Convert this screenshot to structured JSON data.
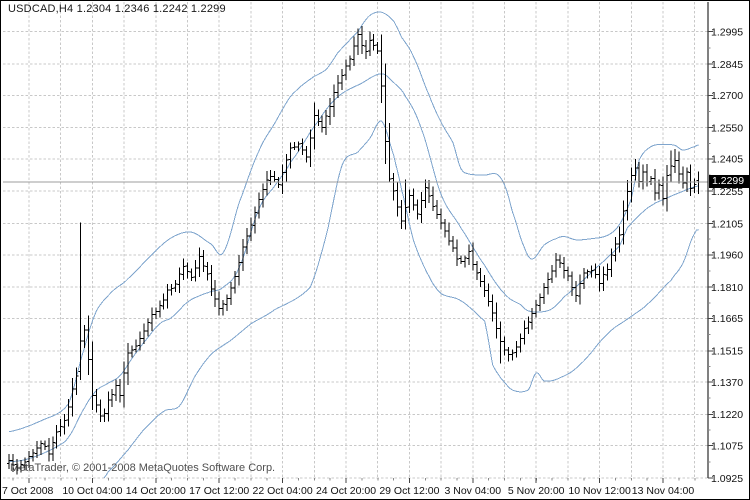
{
  "window": {
    "title": "USDCAD,H4 1.2304 1.2346 1.2242 1.2299",
    "watermark": "MetaTrader, © 2001-2008 MetaQuotes Software Corp."
  },
  "colors": {
    "background": "#ffffff",
    "border": "#000000",
    "grid": "#c8c8c8",
    "bar": "#000000",
    "band": "#7fa5cd",
    "price_line": "#9c9c9c",
    "badge_bg": "#000000",
    "badge_text": "#ffffff",
    "axis_text": "#111111",
    "title_text": "#1a1a1a",
    "watermark_text": "#4f4f4f"
  },
  "chart_data": {
    "type": "ohlc-bar",
    "title": "USDCAD,H4 1.2304 1.2346 1.2242 1.2299",
    "symbol": "USDCAD",
    "timeframe": "H4",
    "overlay_indicator": "Bollinger Bands",
    "current_bar": {
      "open": 1.2304,
      "high": 1.2346,
      "low": 1.2242,
      "close": 1.2299
    },
    "current_price": 1.2299,
    "current_price_label": "1.2299",
    "grid": true,
    "legend_position": "none",
    "x_axis": {
      "labels": [
        "7 Oct 2008",
        "10 Oct 04:00",
        "14 Oct 20:00",
        "17 Oct 12:00",
        "22 Oct 04:00",
        "24 Oct 20:00",
        "29 Oct 12:00",
        "3 Nov 04:00",
        "5 Nov 20:00",
        "10 Nov 12:00",
        "13 Nov 04:00"
      ],
      "bars_per_label": 16,
      "gridline_every_bars": 8
    },
    "y_axis": {
      "labels": [
        "1.2995",
        "1.2845",
        "1.2700",
        "1.2550",
        "1.2405",
        "1.2255",
        "1.2105",
        "1.1960",
        "1.1810",
        "1.1665",
        "1.1515",
        "1.1370",
        "1.1220",
        "1.1075",
        "1.0925"
      ],
      "min": 1.0925,
      "max": 1.2995
    },
    "series": {
      "bar_count": 175,
      "close_keyframes": [
        [
          0,
          1.1
        ],
        [
          2,
          1.0975
        ],
        [
          4,
          1.1005
        ],
        [
          6,
          1.104
        ],
        [
          8,
          1.1085
        ],
        [
          10,
          1.104
        ],
        [
          12,
          1.114
        ],
        [
          14,
          1.12
        ],
        [
          15,
          1.126
        ],
        [
          17,
          1.14
        ],
        [
          18,
          1.156
        ],
        [
          19,
          1.162
        ],
        [
          20,
          1.148
        ],
        [
          21,
          1.13
        ],
        [
          22,
          1.126
        ],
        [
          23,
          1.121
        ],
        [
          24,
          1.123
        ],
        [
          25,
          1.128
        ],
        [
          27,
          1.135
        ],
        [
          28,
          1.131
        ],
        [
          30,
          1.15
        ],
        [
          32,
          1.154
        ],
        [
          34,
          1.16
        ],
        [
          36,
          1.168
        ],
        [
          38,
          1.172
        ],
        [
          40,
          1.179
        ],
        [
          42,
          1.183
        ],
        [
          44,
          1.19
        ],
        [
          46,
          1.186
        ],
        [
          48,
          1.195
        ],
        [
          50,
          1.187
        ],
        [
          51,
          1.18
        ],
        [
          53,
          1.172
        ],
        [
          55,
          1.176
        ],
        [
          56,
          1.18
        ],
        [
          58,
          1.192
        ],
        [
          59,
          1.2
        ],
        [
          61,
          1.21
        ],
        [
          63,
          1.222
        ],
        [
          65,
          1.23
        ],
        [
          66,
          1.233
        ],
        [
          68,
          1.228
        ],
        [
          70,
          1.24
        ],
        [
          71,
          1.245
        ],
        [
          73,
          1.248
        ],
        [
          75,
          1.242
        ],
        [
          77,
          1.26
        ],
        [
          79,
          1.255
        ],
        [
          81,
          1.265
        ],
        [
          82,
          1.272
        ],
        [
          84,
          1.279
        ],
        [
          85,
          1.283
        ],
        [
          87,
          1.292
        ],
        [
          88,
          1.298
        ],
        [
          89,
          1.293
        ],
        [
          90,
          1.29
        ],
        [
          91,
          1.296
        ],
        [
          92,
          1.294
        ],
        [
          93,
          1.29
        ],
        [
          94,
          1.275
        ],
        [
          95,
          1.248
        ],
        [
          96,
          1.231
        ],
        [
          97,
          1.225
        ],
        [
          99,
          1.212
        ],
        [
          101,
          1.223
        ],
        [
          103,
          1.215
        ],
        [
          105,
          1.227
        ],
        [
          107,
          1.218
        ],
        [
          109,
          1.211
        ],
        [
          111,
          1.203
        ],
        [
          113,
          1.195
        ],
        [
          114,
          1.192
        ],
        [
          116,
          1.197
        ],
        [
          118,
          1.187
        ],
        [
          120,
          1.179
        ],
        [
          122,
          1.169
        ],
        [
          124,
          1.156
        ],
        [
          126,
          1.149
        ],
        [
          128,
          1.153
        ],
        [
          130,
          1.162
        ],
        [
          132,
          1.169
        ],
        [
          134,
          1.177
        ],
        [
          136,
          1.185
        ],
        [
          138,
          1.194
        ],
        [
          140,
          1.189
        ],
        [
          143,
          1.178
        ],
        [
          145,
          1.187
        ],
        [
          147,
          1.189
        ],
        [
          149,
          1.183
        ],
        [
          151,
          1.189
        ],
        [
          152,
          1.196
        ],
        [
          154,
          1.206
        ],
        [
          155,
          1.216
        ],
        [
          156,
          1.226
        ],
        [
          157,
          1.232
        ],
        [
          158,
          1.236
        ],
        [
          159,
          1.23
        ],
        [
          160,
          1.234
        ],
        [
          161,
          1.229
        ],
        [
          162,
          1.232
        ],
        [
          163,
          1.225
        ],
        [
          164,
          1.229
        ],
        [
          165,
          1.223
        ],
        [
          166,
          1.232
        ],
        [
          167,
          1.238
        ],
        [
          168,
          1.24
        ],
        [
          169,
          1.233
        ],
        [
          170,
          1.229
        ],
        [
          171,
          1.234
        ],
        [
          172,
          1.226
        ],
        [
          173,
          1.229
        ],
        [
          174,
          1.2299
        ]
      ],
      "bar_overrides": {
        "18": {
          "open": 1.142,
          "high": 1.211,
          "low": 1.138,
          "close": 1.156
        },
        "23": {
          "low": 1.1185
        },
        "88": {
          "high": 1.301
        },
        "91": {
          "high": 1.2995
        },
        "96": {
          "low": 1.2295
        },
        "99": {
          "low": 1.208
        },
        "100": {
          "high": 1.231
        },
        "105": {
          "high": 1.231
        },
        "124": {
          "low": 1.1455
        },
        "126": {
          "low": 1.1465
        },
        "158": {
          "high": 1.2405
        },
        "167": {
          "high": 1.2445
        },
        "168": {
          "high": 1.245
        },
        "174": {
          "open": 1.2304,
          "high": 1.2346,
          "low": 1.2242,
          "close": 1.2299
        }
      }
    },
    "bollinger_bands": {
      "upper_keyframes": [
        [
          0,
          1.114
        ],
        [
          8,
          1.119
        ],
        [
          15,
          1.127
        ],
        [
          19,
          1.153
        ],
        [
          22,
          1.17
        ],
        [
          26,
          1.179
        ],
        [
          30,
          1.185
        ],
        [
          36,
          1.196
        ],
        [
          41,
          1.204
        ],
        [
          46,
          1.2065
        ],
        [
          51,
          1.201
        ],
        [
          54,
          1.197
        ],
        [
          58,
          1.22
        ],
        [
          63,
          1.244
        ],
        [
          67,
          1.257
        ],
        [
          71,
          1.2695
        ],
        [
          76,
          1.2775
        ],
        [
          80,
          1.282
        ],
        [
          83,
          1.29
        ],
        [
          88,
          1.2995
        ],
        [
          91,
          1.307
        ],
        [
          94,
          1.3085
        ],
        [
          97,
          1.3045
        ],
        [
          99,
          1.297
        ],
        [
          102,
          1.288
        ],
        [
          106,
          1.27
        ],
        [
          109,
          1.2575
        ],
        [
          112,
          1.248
        ],
        [
          114,
          1.236
        ],
        [
          116,
          1.2335
        ],
        [
          120,
          1.233
        ],
        [
          123,
          1.2335
        ],
        [
          125,
          1.2285
        ],
        [
          127,
          1.216
        ],
        [
          130,
          1.1995
        ],
        [
          132,
          1.194
        ],
        [
          135,
          1.2005
        ],
        [
          138,
          1.2035
        ],
        [
          140,
          1.2045
        ],
        [
          143,
          1.203
        ],
        [
          147,
          1.2035
        ],
        [
          151,
          1.205
        ],
        [
          154,
          1.21
        ],
        [
          157,
          1.222
        ],
        [
          159,
          1.24
        ],
        [
          162,
          1.2462
        ],
        [
          165,
          1.2472
        ],
        [
          168,
          1.2468
        ],
        [
          170,
          1.2446
        ],
        [
          173,
          1.2462
        ],
        [
          174,
          1.247
        ]
      ],
      "middle_keyframes": [
        [
          0,
          1.1
        ],
        [
          4,
          1.101
        ],
        [
          8,
          1.1035
        ],
        [
          12,
          1.107
        ],
        [
          15,
          1.1115
        ],
        [
          19,
          1.125
        ],
        [
          22,
          1.133
        ],
        [
          25,
          1.1365
        ],
        [
          28,
          1.14
        ],
        [
          31,
          1.148
        ],
        [
          34,
          1.1555
        ],
        [
          38,
          1.164
        ],
        [
          41,
          1.167
        ],
        [
          45,
          1.174
        ],
        [
          48,
          1.177
        ],
        [
          51,
          1.179
        ],
        [
          54,
          1.181
        ],
        [
          58,
          1.19
        ],
        [
          63,
          1.217
        ],
        [
          67,
          1.228
        ],
        [
          71,
          1.239
        ],
        [
          78,
          1.258
        ],
        [
          83,
          1.2695
        ],
        [
          89,
          1.2756
        ],
        [
          94,
          1.28
        ],
        [
          97,
          1.276
        ],
        [
          100,
          1.2695
        ],
        [
          104,
          1.2545
        ],
        [
          109,
          1.224
        ],
        [
          114,
          1.2085
        ],
        [
          120,
          1.1911
        ],
        [
          125,
          1.178
        ],
        [
          129,
          1.173
        ],
        [
          131,
          1.17
        ],
        [
          134,
          1.1695
        ],
        [
          137,
          1.171
        ],
        [
          140,
          1.1765
        ],
        [
          145,
          1.1845
        ],
        [
          150,
          1.193
        ],
        [
          154,
          1.2
        ],
        [
          156,
          1.2085
        ],
        [
          160,
          1.216
        ],
        [
          163,
          1.22
        ],
        [
          168,
          1.224
        ],
        [
          174,
          1.228
        ]
      ],
      "lower_keyframes": [
        [
          15,
          1.08
        ],
        [
          20,
          1.082
        ],
        [
          23,
          1.09
        ],
        [
          25,
          1.0955
        ],
        [
          30,
          1.1055
        ],
        [
          34,
          1.115
        ],
        [
          39,
          1.1234
        ],
        [
          43,
          1.126
        ],
        [
          47,
          1.14
        ],
        [
          51,
          1.15
        ],
        [
          56,
          1.1565
        ],
        [
          61,
          1.164
        ],
        [
          67,
          1.1706
        ],
        [
          76,
          1.181
        ],
        [
          80,
          1.205
        ],
        [
          84,
          1.2375
        ],
        [
          88,
          1.2437
        ],
        [
          91,
          1.25
        ],
        [
          94,
          1.258
        ],
        [
          97,
          1.2423
        ],
        [
          99,
          1.2264
        ],
        [
          102,
          1.2028
        ],
        [
          106,
          1.1859
        ],
        [
          109,
          1.178
        ],
        [
          114,
          1.1747
        ],
        [
          120,
          1.1653
        ],
        [
          121,
          1.156
        ],
        [
          122,
          1.1451
        ],
        [
          124,
          1.139
        ],
        [
          127,
          1.1333
        ],
        [
          131,
          1.1333
        ],
        [
          133,
          1.1413
        ],
        [
          135,
          1.1375
        ],
        [
          139,
          1.139
        ],
        [
          144,
          1.1451
        ],
        [
          151,
          1.1592
        ],
        [
          156,
          1.1662
        ],
        [
          161,
          1.173
        ],
        [
          167,
          1.1841
        ],
        [
          170,
          1.192
        ],
        [
          173,
          1.206
        ],
        [
          174,
          1.2075
        ]
      ]
    }
  }
}
